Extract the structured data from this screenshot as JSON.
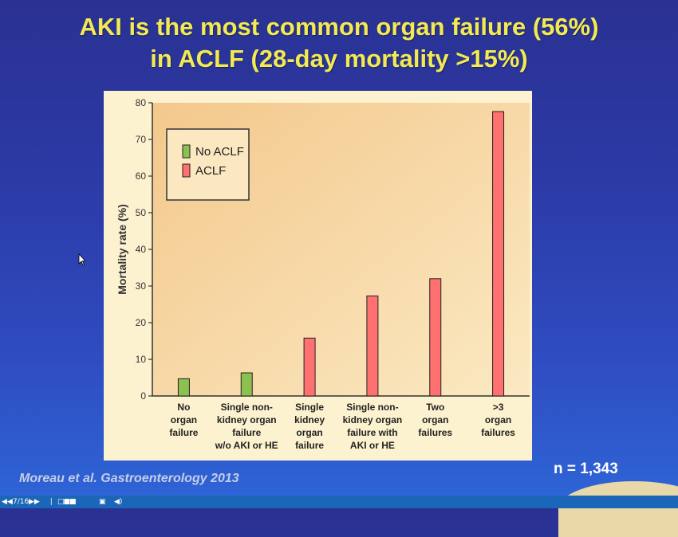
{
  "slide": {
    "title_line1": "AKI is the most common organ failure (56%)",
    "title_line2": "in ACLF (28-day mortality >15%)",
    "citation": "Moreau et al. Gastroenterology 2013",
    "n_count": "n = 1,343"
  },
  "viewer": {
    "prev_icon": "rewind-icon",
    "page_indicator": "7/16",
    "next_icon": "fast-forward-icon",
    "cursor_icon": "i-beam-icon",
    "view_toggle_icon": "slide-sorter-icon",
    "screen_icon": "monitor-icon",
    "audio_icon": "speaker-icon"
  },
  "colors": {
    "title": "#f2ea52",
    "no_aclf": "#8cc050",
    "aclf": "#ff7070",
    "panel_bg": "#fdf2cf"
  },
  "chart_data": {
    "type": "bar",
    "ylabel": "Mortality rate (%)",
    "ylim": [
      0,
      80
    ],
    "yticks": [
      "0",
      "10",
      "20",
      "30",
      "40",
      "50",
      "60",
      "70",
      "80"
    ],
    "grid": false,
    "legend_position": "top-left",
    "legend": [
      {
        "name": "No ACLF",
        "color": "#8cc050"
      },
      {
        "name": "ACLF",
        "color": "#ff7070"
      }
    ],
    "categories": [
      [
        "No",
        "organ",
        "failure"
      ],
      [
        "Single non-",
        "kidney organ",
        "failure",
        "w/o AKI or HE"
      ],
      [
        "Single",
        "kidney",
        "organ",
        "failure"
      ],
      [
        "Single non-",
        "kidney organ",
        "failure with",
        "AKI or HE"
      ],
      [
        "Two",
        "organ",
        "failures"
      ],
      [
        ">3",
        "organ",
        "failures"
      ]
    ],
    "values": [
      4.7,
      6.3,
      15.8,
      27.3,
      32.0,
      77.6
    ],
    "groups": [
      "No ACLF",
      "No ACLF",
      "ACLF",
      "ACLF",
      "ACLF",
      "ACLF"
    ]
  }
}
